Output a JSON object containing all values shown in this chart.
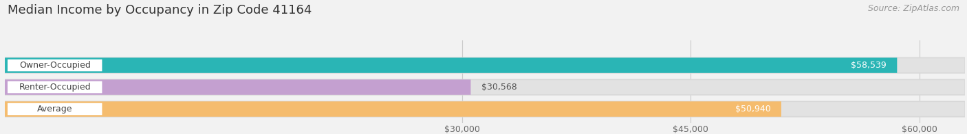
{
  "title": "Median Income by Occupancy in Zip Code 41164",
  "source": "Source: ZipAtlas.com",
  "categories": [
    "Owner-Occupied",
    "Renter-Occupied",
    "Average"
  ],
  "values": [
    58539,
    30568,
    50940
  ],
  "bar_colors": [
    "#2ab5b5",
    "#c4a0d0",
    "#f5bc6e"
  ],
  "value_labels": [
    "$58,539",
    "$30,568",
    "$50,940"
  ],
  "value_inside": [
    true,
    false,
    true
  ],
  "x_ticks": [
    30000,
    45000,
    60000
  ],
  "x_tick_labels": [
    "$30,000",
    "$45,000",
    "$60,000"
  ],
  "xlim_max": 63000,
  "background_color": "#f2f2f2",
  "bar_bg_color": "#e2e2e2",
  "title_fontsize": 13,
  "source_fontsize": 9,
  "tick_fontsize": 9,
  "bar_label_fontsize": 9,
  "value_fontsize": 9
}
